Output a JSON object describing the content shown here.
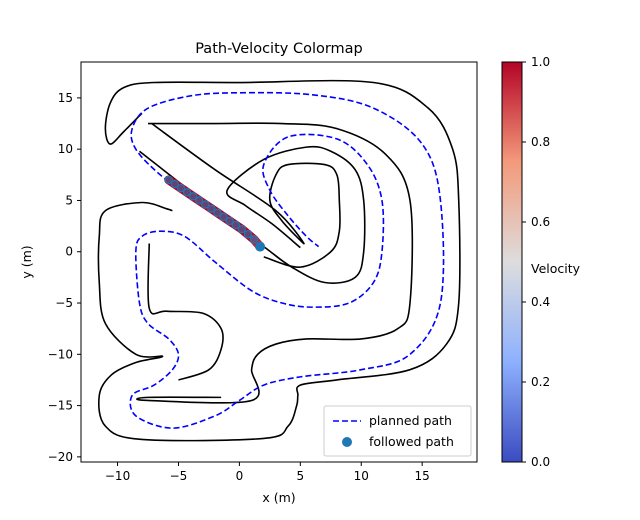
{
  "chart_data": {
    "type": "line",
    "title": "Path-Velocity Colormap",
    "xlabel": "x (m)",
    "ylabel": "y (m)",
    "xlim": [
      -13,
      19.5
    ],
    "ylim": [
      -20.5,
      18.5
    ],
    "xticks": [
      -10,
      -5,
      0,
      5,
      10,
      15
    ],
    "yticks": [
      -20,
      -15,
      -10,
      -5,
      0,
      5,
      10,
      15
    ],
    "grid": false,
    "legend": {
      "placement": "bottom-right",
      "entries": [
        "planned path",
        "followed path"
      ]
    },
    "colorbar": {
      "label": "Velocity",
      "range": [
        0.0,
        1.0
      ],
      "ticks": [
        "0.0",
        "0.2",
        "0.4",
        "0.6",
        "0.8",
        "1.0"
      ],
      "colormap": "coolwarm",
      "colors": [
        "#3b4cc0",
        "#8db0fe",
        "#dddddd",
        "#f49a7b",
        "#b40426"
      ]
    },
    "series": [
      {
        "name": "planned path",
        "style": "dashed",
        "color": "#0000ff",
        "points": [
          [
            1.5,
            0.8
          ],
          [
            -1,
            2.8
          ],
          [
            -3.5,
            4.8
          ],
          [
            -6.5,
            7.5
          ],
          [
            -8.5,
            10
          ],
          [
            -8.8,
            12
          ],
          [
            -7.5,
            14
          ],
          [
            -4,
            15.2
          ],
          [
            0,
            15.5
          ],
          [
            6,
            15.3
          ],
          [
            11,
            14
          ],
          [
            15,
            10.5
          ],
          [
            16.5,
            5
          ],
          [
            16.5,
            -5
          ],
          [
            14,
            -10
          ],
          [
            10,
            -11.5
          ],
          [
            5,
            -12.2
          ],
          [
            2,
            -13
          ],
          [
            0,
            -14.5
          ],
          [
            -2,
            -16
          ],
          [
            -5.5,
            -17.2
          ],
          [
            -8.5,
            -16
          ],
          [
            -8.8,
            -14
          ],
          [
            -7,
            -13
          ],
          [
            -5.5,
            -11.5
          ],
          [
            -5,
            -10
          ],
          [
            -5.8,
            -8.5
          ],
          [
            -7.5,
            -7
          ],
          [
            -8.2,
            -5
          ],
          [
            -8.5,
            0
          ],
          [
            -8,
            1.5
          ],
          [
            -6.5,
            2
          ],
          [
            -4.5,
            1.5
          ],
          [
            -2,
            -1
          ],
          [
            1,
            -3.8
          ],
          [
            3.5,
            -5
          ],
          [
            6,
            -5.4
          ],
          [
            9,
            -5
          ],
          [
            11,
            -3
          ],
          [
            11.7,
            0
          ],
          [
            11.7,
            5
          ],
          [
            10.5,
            8.5
          ],
          [
            8,
            11
          ],
          [
            4,
            11.2
          ],
          [
            2,
            8.5
          ],
          [
            2.5,
            6
          ],
          [
            4,
            3.5
          ],
          [
            5.5,
            1.5
          ],
          [
            6.5,
            0.5
          ]
        ]
      },
      {
        "name": "followed path",
        "style": "markers",
        "color": "#1f77b4",
        "points": [
          [
            -5.8,
            7
          ],
          [
            -5.3,
            6.6
          ],
          [
            -4.8,
            6.2
          ],
          [
            -4.3,
            5.8
          ],
          [
            -3.8,
            5.4
          ],
          [
            -3.3,
            5
          ],
          [
            -2.8,
            4.6
          ],
          [
            -2.3,
            4.2
          ],
          [
            -1.8,
            3.8
          ],
          [
            -1.3,
            3.4
          ],
          [
            -0.8,
            3
          ],
          [
            -0.3,
            2.6
          ],
          [
            0.2,
            2.2
          ],
          [
            0.7,
            1.7
          ],
          [
            1.2,
            1.2
          ],
          [
            1.7,
            0.5
          ]
        ],
        "velocity": [
          1.0,
          1.0,
          1.0,
          1.0,
          1.0,
          1.0,
          1.0,
          1.0,
          1.0,
          1.0,
          1.0,
          1.0,
          1.0,
          1.0,
          0.95,
          0.1
        ]
      }
    ],
    "track": {
      "color": "#000000",
      "outer": [
        [
          -8,
          13.5
        ],
        [
          -9.5,
          11.7
        ],
        [
          -10.6,
          10.5
        ],
        [
          -11,
          12
        ],
        [
          -10.6,
          14.5
        ],
        [
          -9.5,
          16
        ],
        [
          -7,
          16.5
        ],
        [
          0,
          16.5
        ],
        [
          11,
          16.5
        ],
        [
          15.5,
          14
        ],
        [
          17.5,
          10
        ],
        [
          18,
          5
        ],
        [
          18,
          -5
        ],
        [
          17,
          -9
        ],
        [
          14,
          -11.5
        ],
        [
          8,
          -12.5
        ],
        [
          5,
          -13
        ],
        [
          4.8,
          -14
        ],
        [
          4.7,
          -15
        ],
        [
          4,
          -17
        ],
        [
          2,
          -18.2
        ],
        [
          -8,
          -18.3
        ],
        [
          -11,
          -17
        ],
        [
          -11.5,
          -14
        ],
        [
          -10.5,
          -12
        ],
        [
          -8.5,
          -10.8
        ],
        [
          -6.3,
          -10.2
        ],
        [
          -8.5,
          -10
        ],
        [
          -11,
          -7
        ],
        [
          -11.5,
          -3
        ],
        [
          -11.5,
          1.5
        ],
        [
          -11,
          4
        ],
        [
          -8,
          4.8
        ],
        [
          -6,
          4.2
        ],
        [
          -5.5,
          4
        ]
      ],
      "lane1": [
        [
          -7.5,
          12.5
        ],
        [
          -2,
          12.5
        ],
        [
          3.5,
          12.5
        ],
        [
          8,
          12
        ],
        [
          12,
          9.5
        ],
        [
          14,
          5
        ],
        [
          14,
          -5
        ],
        [
          13,
          -7.5
        ],
        [
          10,
          -8.5
        ],
        [
          5.5,
          -8.5
        ],
        [
          3,
          -9
        ],
        [
          1.5,
          -10
        ],
        [
          1,
          -11.5
        ],
        [
          1,
          -14.5
        ],
        [
          -7.5,
          -14.5
        ],
        [
          -7.5,
          -14.2
        ],
        [
          -1.5,
          -14.2
        ]
      ],
      "lane2": [
        [
          -7.4,
          0.8
        ],
        [
          -7.4,
          -5.5
        ],
        [
          -6,
          -5.8
        ],
        [
          -3,
          -6
        ],
        [
          -1.5,
          -7.5
        ],
        [
          -1.5,
          -9.5
        ],
        [
          -2.5,
          -11.5
        ],
        [
          -5,
          -12.5
        ]
      ],
      "lane3": [
        [
          -8.2,
          9.8
        ],
        [
          -2.5,
          4.5
        ],
        [
          2,
          0.5
        ],
        [
          4.3,
          -1.5
        ],
        [
          7,
          -3
        ],
        [
          9.5,
          -2.5
        ],
        [
          10.2,
          0
        ],
        [
          10.2,
          5
        ],
        [
          9.5,
          8
        ],
        [
          7.5,
          9.8
        ],
        [
          5.5,
          10.2
        ],
        [
          2,
          9
        ],
        [
          -1,
          6
        ],
        [
          0.5,
          4.5
        ],
        [
          2.7,
          2.7
        ],
        [
          5,
          0.4
        ]
      ],
      "lane4": [
        [
          -7.2,
          12.5
        ],
        [
          -2,
          8
        ],
        [
          3,
          4
        ],
        [
          5.3,
          0.8
        ],
        [
          3.5,
          3
        ],
        [
          2.5,
          5
        ],
        [
          3,
          7.5
        ],
        [
          4,
          8.5
        ],
        [
          7,
          8.5
        ],
        [
          8,
          7.5
        ],
        [
          8.2,
          5
        ],
        [
          8.2,
          2
        ],
        [
          7.5,
          0
        ],
        [
          5,
          -1.5
        ],
        [
          2,
          -0.5
        ]
      ]
    }
  }
}
